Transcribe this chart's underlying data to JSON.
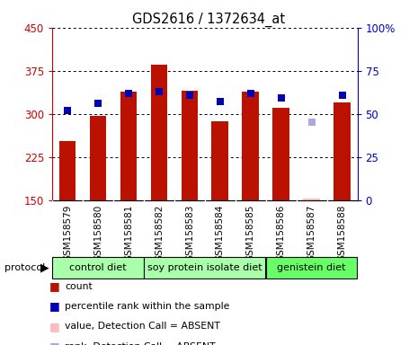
{
  "title": "GDS2616 / 1372634_at",
  "samples": [
    "GSM158579",
    "GSM158580",
    "GSM158581",
    "GSM158582",
    "GSM158583",
    "GSM158584",
    "GSM158585",
    "GSM158586",
    "GSM158587",
    "GSM158588"
  ],
  "count_values": [
    252,
    297,
    338,
    385,
    340,
    287,
    338,
    310,
    152,
    320
  ],
  "count_absent": [
    false,
    false,
    false,
    false,
    false,
    false,
    false,
    false,
    true,
    false
  ],
  "rank_values": [
    52,
    56,
    62,
    63,
    61,
    57,
    62,
    59,
    45,
    61
  ],
  "rank_absent": [
    false,
    false,
    false,
    false,
    false,
    false,
    false,
    false,
    true,
    false
  ],
  "rank_absent_value": 45,
  "ylim_left": [
    150,
    450
  ],
  "ylim_right": [
    0,
    100
  ],
  "yticks_left": [
    150,
    225,
    300,
    375,
    450
  ],
  "yticks_right": [
    0,
    25,
    50,
    75,
    100
  ],
  "bar_color": "#bb1100",
  "bar_color_absent": "#ffbbbb",
  "rank_color": "#0000bb",
  "rank_color_absent": "#aaaadd",
  "background_color": "#cccccc",
  "bar_width": 0.55,
  "rank_marker_size": 6,
  "left_ylabel_color": "#cc0000",
  "right_ylabel_color": "#0000cc",
  "group_info": [
    {
      "start": 0,
      "end": 3,
      "label": "control diet",
      "color": "#aaffaa"
    },
    {
      "start": 3,
      "end": 7,
      "label": "soy protein isolate diet",
      "color": "#aaffaa"
    },
    {
      "start": 7,
      "end": 10,
      "label": "genistein diet",
      "color": "#66ff66"
    }
  ],
  "legend_items": [
    {
      "color": "#bb1100",
      "label": "count"
    },
    {
      "color": "#0000bb",
      "label": "percentile rank within the sample"
    },
    {
      "color": "#ffbbbb",
      "label": "value, Detection Call = ABSENT"
    },
    {
      "color": "#aaaadd",
      "label": "rank, Detection Call = ABSENT"
    }
  ]
}
